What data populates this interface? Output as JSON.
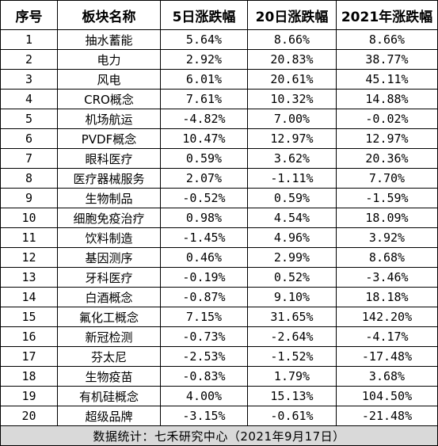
{
  "headers": [
    "序号",
    "板块名称",
    "5日涨跌幅",
    "20日涨跌幅",
    "2021年涨跌幅"
  ],
  "rows": [
    {
      "index": "1",
      "name": "抽水蓄能",
      "d5": "5.64%",
      "d20": "8.66%",
      "ytd": "8.66%"
    },
    {
      "index": "2",
      "name": "电力",
      "d5": "2.92%",
      "d20": "20.83%",
      "ytd": "38.77%"
    },
    {
      "index": "3",
      "name": "风电",
      "d5": "6.01%",
      "d20": "20.61%",
      "ytd": "45.11%"
    },
    {
      "index": "4",
      "name": "CRO概念",
      "d5": "7.61%",
      "d20": "10.32%",
      "ytd": "14.88%"
    },
    {
      "index": "5",
      "name": "机场航运",
      "d5": "-4.82%",
      "d20": "7.00%",
      "ytd": "-0.02%"
    },
    {
      "index": "6",
      "name": "PVDF概念",
      "d5": "10.47%",
      "d20": "12.97%",
      "ytd": "12.97%"
    },
    {
      "index": "7",
      "name": "眼科医疗",
      "d5": "0.59%",
      "d20": "3.62%",
      "ytd": "20.36%"
    },
    {
      "index": "8",
      "name": "医疗器械服务",
      "d5": "2.07%",
      "d20": "-1.11%",
      "ytd": "7.70%"
    },
    {
      "index": "9",
      "name": "生物制品",
      "d5": "-0.52%",
      "d20": "0.59%",
      "ytd": "-1.59%"
    },
    {
      "index": "10",
      "name": "细胞免疫治疗",
      "d5": "0.98%",
      "d20": "4.54%",
      "ytd": "18.09%"
    },
    {
      "index": "11",
      "name": "饮料制造",
      "d5": "-1.45%",
      "d20": "4.96%",
      "ytd": "3.92%"
    },
    {
      "index": "12",
      "name": "基因测序",
      "d5": "0.46%",
      "d20": "2.99%",
      "ytd": "8.68%"
    },
    {
      "index": "13",
      "name": "牙科医疗",
      "d5": "-0.19%",
      "d20": "0.52%",
      "ytd": "-3.46%"
    },
    {
      "index": "14",
      "name": "白酒概念",
      "d5": "-0.87%",
      "d20": "9.10%",
      "ytd": "18.18%"
    },
    {
      "index": "15",
      "name": "氟化工概念",
      "d5": "7.15%",
      "d20": "31.65%",
      "ytd": "142.20%"
    },
    {
      "index": "16",
      "name": "新冠检测",
      "d5": "-0.73%",
      "d20": "-2.64%",
      "ytd": "-4.17%"
    },
    {
      "index": "17",
      "name": "芬太尼",
      "d5": "-2.53%",
      "d20": "-1.52%",
      "ytd": "-17.48%"
    },
    {
      "index": "18",
      "name": "生物疫苗",
      "d5": "-0.83%",
      "d20": "1.79%",
      "ytd": "3.68%"
    },
    {
      "index": "19",
      "name": "有机硅概念",
      "d5": "4.00%",
      "d20": "15.13%",
      "ytd": "104.50%"
    },
    {
      "index": "20",
      "name": "超级品牌",
      "d5": "-3.15%",
      "d20": "-0.61%",
      "ytd": "-21.48%"
    }
  ],
  "footer": "数据统计：七禾研究中心（2021年9月17日）",
  "colors": {
    "footer_bg": "#d9d9d9",
    "border": "#000000"
  }
}
